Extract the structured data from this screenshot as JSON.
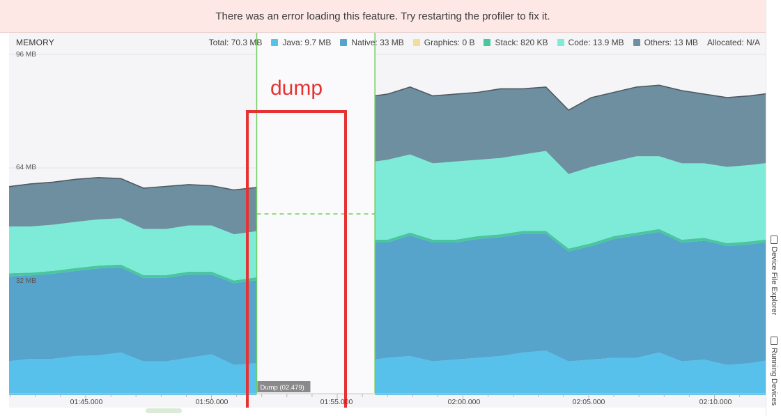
{
  "banner": {
    "message": "There was an error loading this feature. Try restarting the profiler to fix it."
  },
  "header": {
    "title": "MEMORY"
  },
  "legend": {
    "total": "Total: 70.3 MB",
    "java": "Java: 9.7 MB",
    "native": "Native: 33 MB",
    "graphics": "Graphics: 0 B",
    "stack": "Stack: 820 KB",
    "code": "Code: 13.9 MB",
    "others": "Others: 13 MB",
    "allocated": "Allocated: N/A"
  },
  "colors": {
    "java": "#57c0eb",
    "native": "#56a4cb",
    "graphics": "#f4dd96",
    "stack": "#48c79e",
    "code": "#7eebd9",
    "others": "#6d8fa0",
    "annotation": "#e53232",
    "marker": "#6fcd5b"
  },
  "y_axis": {
    "ticks": [
      "96 MB",
      "64 MB",
      "32 MB"
    ]
  },
  "x_axis": {
    "ticks": [
      "01:45.000",
      "01:50.000",
      "01:55.000",
      "02:00.000",
      "02:05.000",
      "02:10.000"
    ]
  },
  "annotation": {
    "label": "dump"
  },
  "dump_marker": {
    "label": "Dump (02.479)"
  },
  "side_tabs": {
    "device_file_explorer": "Device File Explorer",
    "running_devices": "Running Devices"
  },
  "chart_data": {
    "type": "area",
    "stacked": true,
    "title": "MEMORY",
    "ylim": [
      0,
      100
    ],
    "y_ticks": [
      32,
      64,
      96
    ],
    "y_unit": "MB",
    "series_order": [
      "Java",
      "Native",
      "Graphics",
      "Stack",
      "Code",
      "Others"
    ],
    "segments": [
      {
        "x": [
          101.0,
          101.9,
          102.8,
          103.7,
          104.6,
          105.5,
          106.4,
          107.3,
          108.2,
          109.1,
          110.0,
          110.9,
          111.8
        ],
        "series": [
          {
            "name": "Java",
            "values": [
              11.5,
              9.5,
              10.2,
              10.2,
              11.0,
              11.2,
              12.0,
              9.5,
              9.5,
              10.5,
              11.5,
              8.5,
              9.0
            ]
          },
          {
            "name": "Native",
            "values": [
              22.8,
              24.0,
              23.5,
              24.0,
              24.0,
              24.5,
              24.0,
              23.5,
              23.5,
              23.5,
              22.5,
              23.0,
              23.4
            ]
          },
          {
            "name": "Graphics",
            "values": [
              0,
              0,
              0,
              0,
              0,
              0,
              0,
              0,
              0,
              0,
              0,
              0,
              0
            ]
          },
          {
            "name": "Stack",
            "values": [
              1.5,
              0.8,
              0.8,
              0.8,
              0.8,
              0.8,
              0.8,
              0.8,
              0.8,
              0.8,
              0.8,
              0.8,
              0.8
            ]
          },
          {
            "name": "Code",
            "values": [
              13.5,
              13.2,
              13.0,
              13.0,
              13.0,
              13.0,
              13.0,
              13.0,
              13.0,
              13.0,
              13.0,
              13.0,
              13.0
            ]
          },
          {
            "name": "Others",
            "values": [
              12.2,
              11.2,
              12.0,
              12.0,
              12.0,
              11.8,
              11.2,
              11.5,
              12.0,
              11.5,
              11.2,
              12.5,
              12.3
            ]
          }
        ]
      },
      {
        "x": [
          116.5,
          117.0,
          117.9,
          118.8,
          119.7,
          120.6,
          121.5,
          122.4,
          123.3,
          124.2,
          125.1,
          126.0,
          126.9,
          127.8,
          128.7,
          129.6,
          130.5,
          131.4,
          132.3
        ],
        "series": [
          {
            "name": "Java",
            "values": [
              10.0,
              10.5,
              11.0,
              9.5,
              10.0,
              10.5,
              11.0,
              12.0,
              12.5,
              9.5,
              10.0,
              10.5,
              10.5,
              12.0,
              9.5,
              10.0,
              8.5,
              9.0,
              10.0
            ]
          },
          {
            "name": "Native",
            "values": [
              33.0,
              32.5,
              34.0,
              33.5,
              33.0,
              33.5,
              33.5,
              33.5,
              33.0,
              31.0,
              32.0,
              33.5,
              34.5,
              34.0,
              33.5,
              33.5,
              33.5,
              33.5,
              33.2
            ]
          },
          {
            "name": "Graphics",
            "values": [
              0,
              0,
              0,
              0,
              0,
              0,
              0,
              0,
              0,
              0,
              0,
              0,
              0,
              0,
              0,
              0,
              0,
              0,
              0
            ]
          },
          {
            "name": "Stack",
            "values": [
              0.8,
              0.8,
              0.8,
              0.8,
              0.8,
              0.8,
              0.8,
              0.8,
              0.8,
              0.8,
              0.8,
              0.8,
              0.8,
              0.8,
              0.8,
              0.8,
              0.8,
              0.8,
              0.8
            ]
          },
          {
            "name": "Code",
            "values": [
              22.0,
              22.5,
              22.0,
              21.5,
              22.0,
              21.5,
              21.5,
              21.5,
              22.5,
              21.0,
              21.5,
              21.0,
              21.5,
              20.5,
              21.5,
              21.0,
              21.5,
              21.5,
              21.6
            ]
          },
          {
            "name": "Others",
            "values": [
              18.5,
              18.5,
              19.0,
              19.0,
              19.0,
              19.0,
              19.5,
              18.5,
              18.0,
              18.0,
              19.5,
              19.5,
              19.5,
              20.0,
              20.5,
              19.5,
              19.5,
              19.5,
              19.5
            ]
          }
        ]
      }
    ],
    "dump_range": [
      111.8,
      116.5
    ]
  }
}
